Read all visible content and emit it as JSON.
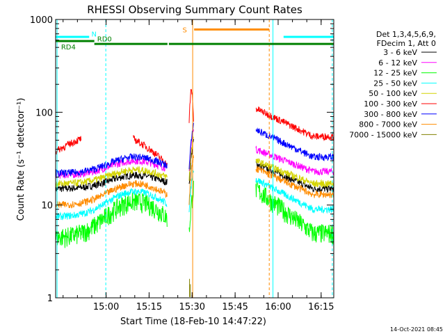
{
  "chart_data": {
    "type": "line",
    "title": "RHESSI Observing Summary Count Rates",
    "xlabel": "Start Time (18-Feb-10 14:47:22)",
    "ylabel": "Count Rate (s⁻¹ detector⁻¹)",
    "yscale": "log",
    "ylim": [
      1,
      1000
    ],
    "xlim_min": [
      -5,
      92
    ],
    "x_ticks": [
      {
        "v": 12.6,
        "label": "15:00"
      },
      {
        "v": 27.6,
        "label": "15:15"
      },
      {
        "v": 42.6,
        "label": "15:30"
      },
      {
        "v": 57.6,
        "label": "15:45"
      },
      {
        "v": 72.6,
        "label": "16:00"
      },
      {
        "v": 87.6,
        "label": "16:15"
      }
    ],
    "y_ticks": [
      {
        "v": 1,
        "label": "1"
      },
      {
        "v": 10,
        "label": "10"
      },
      {
        "v": 100,
        "label": "100"
      },
      {
        "v": 1000,
        "label": "1000"
      }
    ],
    "legend": {
      "header1": "Det 1,3,4,5,6,9,",
      "header2": "FDecim 1, Att 0",
      "position": "right"
    },
    "series": [
      {
        "name": "3 - 6 keV",
        "color": "#000000",
        "pre": 15,
        "arc": 21,
        "post": [
          28,
          15
        ]
      },
      {
        "name": "6 - 12 keV",
        "color": "#ff00ff",
        "pre": 21,
        "arc": 30,
        "post": [
          40,
          23
        ]
      },
      {
        "name": "12 - 25 keV",
        "color": "#00ff00",
        "pre": 4.5,
        "arc": 11,
        "post": [
          15,
          5
        ]
      },
      {
        "name": "25 - 50 keV",
        "color": "#00ffff",
        "pre": 7.5,
        "arc": 14,
        "post": [
          19,
          9
        ]
      },
      {
        "name": "50 - 100 keV",
        "color": "#d4d400",
        "pre": 17,
        "arc": 24,
        "post": [
          30,
          17
        ]
      },
      {
        "name": "100 - 300 keV",
        "color": "#ff0000",
        "pre": 40,
        "arc": 0,
        "post": [
          110,
          55
        ]
      },
      {
        "name": "300 - 800 keV",
        "color": "#0000ff",
        "pre": 22,
        "arc": 33,
        "post": [
          65,
          33
        ]
      },
      {
        "name": "800 - 7000 keV",
        "color": "#ff8c00",
        "pre": 10,
        "arc": 17,
        "post": [
          25,
          13
        ]
      },
      {
        "name": "7000 - 15000 keV",
        "color": "#808000",
        "pre": 0,
        "arc": 0,
        "post": [
          0,
          0
        ]
      }
    ],
    "red_pre_segments": [
      {
        "from": -5,
        "to": 4,
        "start": 38,
        "end": 52
      },
      {
        "from": 22,
        "to": 34,
        "start": 52,
        "end": 27
      }
    ],
    "flare_spike": {
      "t": 41.5,
      "peak": 170
    },
    "gaps": [
      [
        10.5,
        14.6
      ],
      [
        34,
        41.5
      ],
      [
        43.2,
        64.8
      ]
    ],
    "annotations": [
      {
        "label": "N",
        "color": "#00ffff",
        "segments": [
          [
            -5,
            6.7
          ],
          [
            74.5,
            92
          ]
        ],
        "level": 650,
        "vlines": [
          [
            -4,
            12
          ],
          [
            90.5,
            92
          ]
        ],
        "vline_dash": true
      },
      {
        "label": "RD0",
        "color": "#008000",
        "segments": [
          [
            -5,
            8.5
          ]
        ],
        "level": 585
      },
      {
        "label": "RD4",
        "color": "#008000",
        "segments": [
          [
            8.5,
            34
          ],
          [
            34.5,
            92
          ]
        ],
        "level": 545
      },
      {
        "label": "S",
        "color": "#ff8c00",
        "segments": [
          [
            43.3,
            69.5
          ]
        ],
        "level": 780,
        "vlines": [
          [
            42.8,
            69.5
          ]
        ]
      }
    ],
    "cyan_vlines": [
      {
        "t": -4.5,
        "dash": false
      },
      {
        "t": 12.5,
        "dash": true
      },
      {
        "t": 70.8,
        "dash": false
      },
      {
        "t": 91.5,
        "dash": true
      }
    ],
    "orange_vlines": [
      {
        "t": 42.8,
        "dash": false
      },
      {
        "t": 69.5,
        "dash": true
      }
    ]
  },
  "footer": {
    "timestamp": "14-Oct-2021 08:45"
  }
}
